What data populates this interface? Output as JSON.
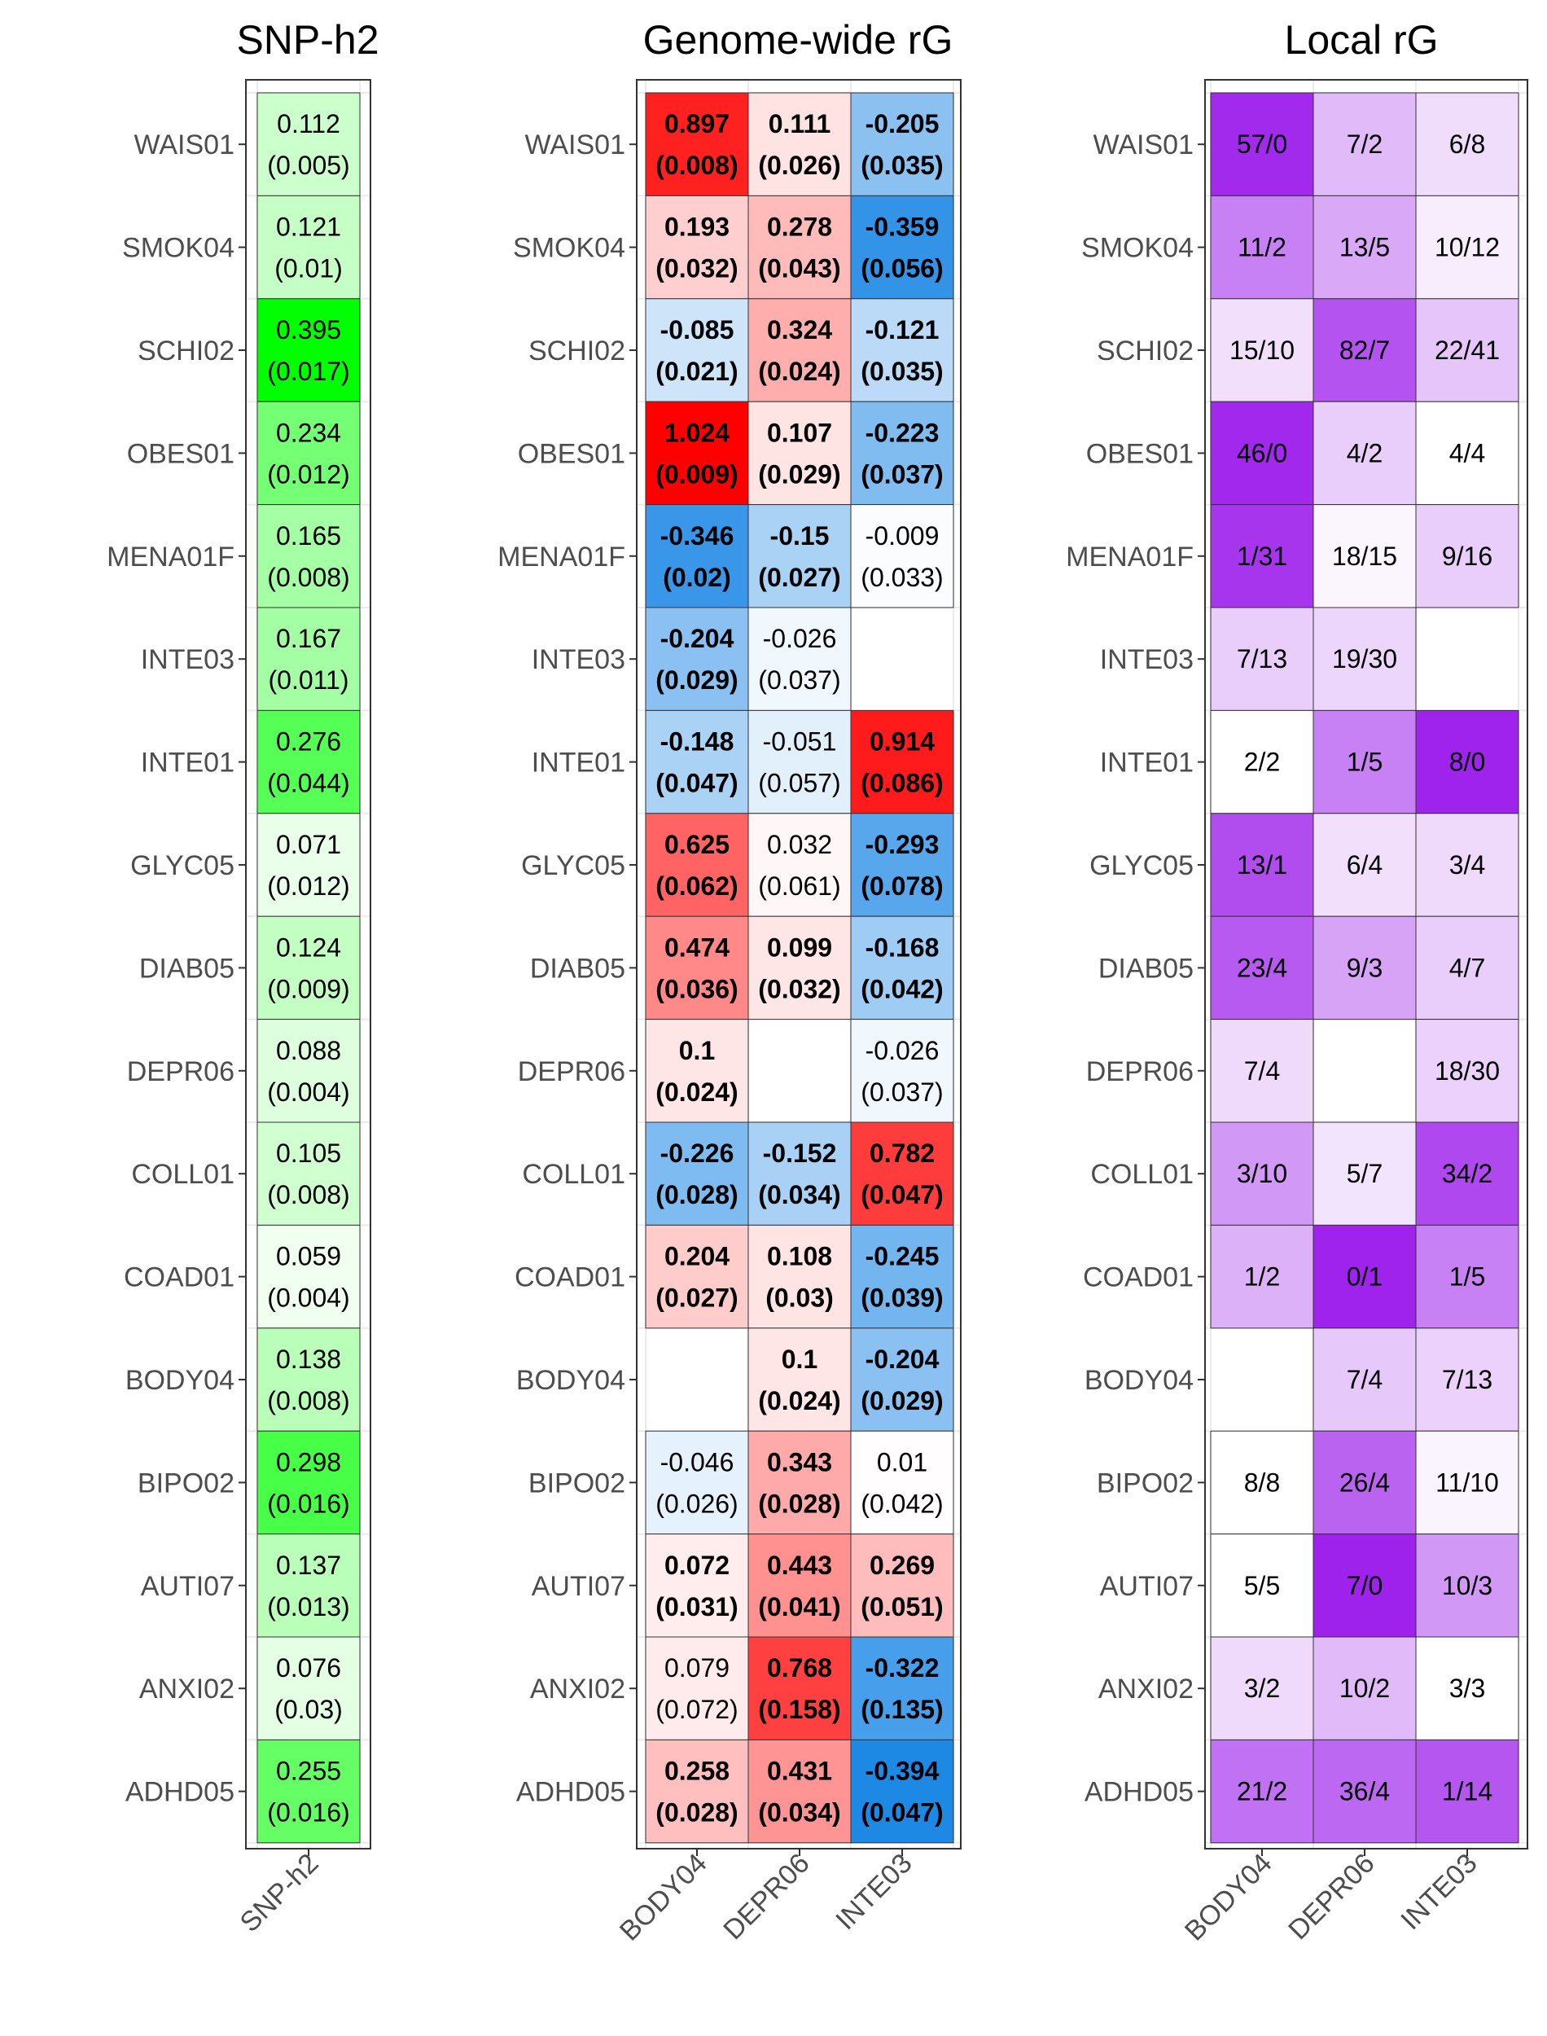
{
  "chart_data": [
    {
      "type": "heatmap",
      "title": "SNP-h2",
      "rows": [
        "WAIS01",
        "SMOK04",
        "SCHI02",
        "OBES01",
        "MENA01F",
        "INTE03",
        "INTE01",
        "GLYC05",
        "DIAB05",
        "DEPR06",
        "COLL01",
        "COAD01",
        "BODY04",
        "BIPO02",
        "AUTI07",
        "ANXI02",
        "ADHD05"
      ],
      "columns": [
        "SNP-h2"
      ],
      "values": [
        [
          0.112
        ],
        [
          0.121
        ],
        [
          0.395
        ],
        [
          0.234
        ],
        [
          0.165
        ],
        [
          0.167
        ],
        [
          0.276
        ],
        [
          0.071
        ],
        [
          0.124
        ],
        [
          0.088
        ],
        [
          0.105
        ],
        [
          0.059
        ],
        [
          0.138
        ],
        [
          0.298
        ],
        [
          0.137
        ],
        [
          0.076
        ],
        [
          0.255
        ]
      ],
      "se_labels": [
        [
          "(0.005)"
        ],
        [
          "(0.01)"
        ],
        [
          "(0.017)"
        ],
        [
          "(0.012)"
        ],
        [
          "(0.008)"
        ],
        [
          "(0.011)"
        ],
        [
          "(0.044)"
        ],
        [
          "(0.012)"
        ],
        [
          "(0.009)"
        ],
        [
          "(0.004)"
        ],
        [
          "(0.008)"
        ],
        [
          "(0.004)"
        ],
        [
          "(0.008)"
        ],
        [
          "(0.016)"
        ],
        [
          "(0.013)"
        ],
        [
          "(0.03)"
        ],
        [
          "(0.016)"
        ]
      ],
      "color_low": "#ffffff",
      "color_high": "#00ff00"
    },
    {
      "type": "heatmap",
      "title": "Genome-wide rG",
      "rows": [
        "WAIS01",
        "SMOK04",
        "SCHI02",
        "OBES01",
        "MENA01F",
        "INTE03",
        "INTE01",
        "GLYC05",
        "DIAB05",
        "DEPR06",
        "COLL01",
        "COAD01",
        "BODY04",
        "BIPO02",
        "AUTI07",
        "ANXI02",
        "ADHD05"
      ],
      "columns": [
        "BODY04",
        "DEPR06",
        "INTE03"
      ],
      "values": [
        [
          0.897,
          0.111,
          -0.205
        ],
        [
          0.193,
          0.278,
          -0.359
        ],
        [
          -0.085,
          0.324,
          -0.121
        ],
        [
          1.024,
          0.107,
          -0.223
        ],
        [
          -0.346,
          -0.15,
          -0.009
        ],
        [
          -0.204,
          -0.026,
          null
        ],
        [
          -0.148,
          -0.051,
          0.914
        ],
        [
          0.625,
          0.032,
          -0.293
        ],
        [
          0.474,
          0.099,
          -0.168
        ],
        [
          0.1,
          null,
          -0.026
        ],
        [
          -0.226,
          -0.152,
          0.782
        ],
        [
          0.204,
          0.108,
          -0.245
        ],
        [
          null,
          0.1,
          -0.204
        ],
        [
          -0.046,
          0.343,
          0.01
        ],
        [
          0.072,
          0.443,
          0.269
        ],
        [
          0.079,
          0.768,
          -0.322
        ],
        [
          0.258,
          0.431,
          -0.394
        ]
      ],
      "se_labels": [
        [
          "(0.008)",
          "(0.026)",
          "(0.035)"
        ],
        [
          "(0.032)",
          "(0.043)",
          "(0.056)"
        ],
        [
          "(0.021)",
          "(0.024)",
          "(0.035)"
        ],
        [
          "(0.009)",
          "(0.029)",
          "(0.037)"
        ],
        [
          "(0.02)",
          "(0.027)",
          "(0.033)"
        ],
        [
          "(0.029)",
          "(0.037)",
          null
        ],
        [
          "(0.047)",
          "(0.057)",
          "(0.086)"
        ],
        [
          "(0.062)",
          "(0.061)",
          "(0.078)"
        ],
        [
          "(0.036)",
          "(0.032)",
          "(0.042)"
        ],
        [
          "(0.024)",
          null,
          "(0.037)"
        ],
        [
          "(0.028)",
          "(0.034)",
          "(0.047)"
        ],
        [
          "(0.027)",
          "(0.03)",
          "(0.039)"
        ],
        [
          null,
          "(0.024)",
          "(0.029)"
        ],
        [
          "(0.026)",
          "(0.028)",
          "(0.042)"
        ],
        [
          "(0.031)",
          "(0.041)",
          "(0.051)"
        ],
        [
          "(0.072)",
          "(0.158)",
          "(0.135)"
        ],
        [
          "(0.028)",
          "(0.034)",
          "(0.047)"
        ]
      ],
      "significant": [
        [
          true,
          true,
          true
        ],
        [
          true,
          true,
          true
        ],
        [
          true,
          true,
          true
        ],
        [
          true,
          true,
          true
        ],
        [
          true,
          true,
          false
        ],
        [
          true,
          false,
          false
        ],
        [
          true,
          false,
          true
        ],
        [
          true,
          false,
          true
        ],
        [
          true,
          true,
          true
        ],
        [
          true,
          false,
          false
        ],
        [
          true,
          true,
          true
        ],
        [
          true,
          true,
          true
        ],
        [
          false,
          true,
          true
        ],
        [
          false,
          true,
          false
        ],
        [
          true,
          true,
          true
        ],
        [
          false,
          true,
          true
        ],
        [
          true,
          true,
          true
        ]
      ],
      "color_negative": "#1e88e5",
      "color_mid": "#ffffff",
      "color_positive": "#ff0000"
    },
    {
      "type": "heatmap",
      "title": "Local rG",
      "rows": [
        "WAIS01",
        "SMOK04",
        "SCHI02",
        "OBES01",
        "MENA01F",
        "INTE03",
        "INTE01",
        "GLYC05",
        "DIAB05",
        "DEPR06",
        "COLL01",
        "COAD01",
        "BODY04",
        "BIPO02",
        "AUTI07",
        "ANXI02",
        "ADHD05"
      ],
      "columns": [
        "BODY04",
        "DEPR06",
        "INTE03"
      ],
      "labels": [
        [
          "57/0",
          "7/2",
          "6/8"
        ],
        [
          "11/2",
          "13/5",
          "10/12"
        ],
        [
          "15/10",
          "82/7",
          "22/41"
        ],
        [
          "46/0",
          "4/2",
          "4/4"
        ],
        [
          "1/31",
          "18/15",
          "9/16"
        ],
        [
          "7/13",
          "19/30",
          null
        ],
        [
          "2/2",
          "1/5",
          "8/0"
        ],
        [
          "13/1",
          "6/4",
          "3/4"
        ],
        [
          "23/4",
          "9/3",
          "4/7"
        ],
        [
          "7/4",
          null,
          "18/30"
        ],
        [
          "3/10",
          "5/7",
          "34/2"
        ],
        [
          "1/2",
          "0/1",
          "1/5"
        ],
        [
          null,
          "7/4",
          "7/13"
        ],
        [
          "8/8",
          "26/4",
          "11/10"
        ],
        [
          "5/5",
          "7/0",
          "10/3"
        ],
        [
          "3/2",
          "10/2",
          "3/3"
        ],
        [
          "21/2",
          "36/4",
          "1/14"
        ]
      ],
      "intensity": [
        [
          0.93,
          0.3,
          0.15
        ],
        [
          0.55,
          0.38,
          0.08
        ],
        [
          0.14,
          0.75,
          0.25
        ],
        [
          0.94,
          0.22,
          0.0
        ],
        [
          0.88,
          0.04,
          0.22
        ],
        [
          0.22,
          0.18,
          null
        ],
        [
          0.0,
          0.55,
          0.96
        ],
        [
          0.78,
          0.14,
          0.16
        ],
        [
          0.72,
          0.4,
          0.22
        ],
        [
          0.16,
          null,
          0.2
        ],
        [
          0.45,
          0.12,
          0.8
        ],
        [
          0.34,
          0.96,
          0.55
        ],
        [
          null,
          0.24,
          0.2
        ],
        [
          0.0,
          0.68,
          0.05
        ],
        [
          0.0,
          0.97,
          0.45
        ],
        [
          0.16,
          0.3,
          0.0
        ],
        [
          0.62,
          0.66,
          0.74
        ]
      ],
      "color_low": "#ffffff",
      "color_high": "#9b1aeb"
    }
  ]
}
